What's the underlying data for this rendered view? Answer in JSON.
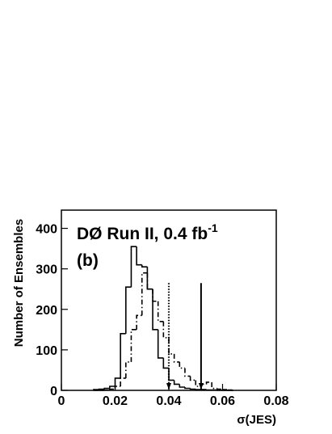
{
  "chart_data": {
    "type": "histogram",
    "annotation": "DØ Run II, 0.4 fb",
    "annotation_sup": "-1",
    "panel_label": "(b)",
    "xlabel": "σ(JES)",
    "ylabel": "Number of Ensembles",
    "bins": [
      0.012,
      0.014,
      0.016,
      0.018,
      0.02,
      0.022,
      0.024,
      0.026,
      0.028,
      0.03,
      0.032,
      0.034,
      0.036,
      0.038,
      0.04,
      0.042,
      0.044,
      0.046,
      0.048,
      0.05,
      0.052,
      0.054,
      0.056,
      0.058,
      0.06,
      0.062,
      0.064
    ],
    "series": [
      {
        "style": "solid",
        "color": "#000000",
        "values": [
          2,
          3,
          5,
          10,
          30,
          140,
          255,
          355,
          310,
          305,
          250,
          150,
          80,
          55,
          25,
          15,
          8,
          5,
          3,
          2,
          2,
          1,
          1,
          0,
          0,
          0
        ]
      },
      {
        "style": "dashdot",
        "color": "#000000",
        "values": [
          0,
          0,
          1,
          3,
          10,
          30,
          70,
          150,
          185,
          290,
          250,
          220,
          170,
          130,
          90,
          70,
          55,
          35,
          25,
          10,
          15,
          20,
          5,
          3,
          2,
          1
        ]
      }
    ],
    "markers": [
      {
        "x": 0.04,
        "height": 265,
        "style": "dotted"
      },
      {
        "x": 0.052,
        "height": 265,
        "style": "solid"
      }
    ],
    "xlim": [
      0,
      0.08
    ],
    "xticks": [
      0,
      0.02,
      0.04,
      0.06,
      0.08
    ],
    "ylim": [
      0,
      445
    ],
    "yticks": [
      0,
      100,
      200,
      300,
      400
    ]
  }
}
